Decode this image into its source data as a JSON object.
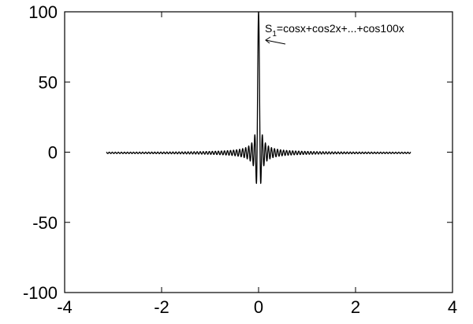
{
  "chart_data": {
    "type": "line",
    "title": "",
    "xlabel": "",
    "ylabel": "",
    "xlim": [
      -4,
      4
    ],
    "ylim": [
      -100,
      100
    ],
    "x_ticks": [
      -4,
      -2,
      0,
      2,
      4
    ],
    "y_ticks": [
      -100,
      -50,
      0,
      50,
      100
    ],
    "grid": false,
    "x_range": [
      -3.14159,
      3.14159
    ],
    "series": [
      {
        "expression": "cos(x)+cos(2x)+...+cos(100x)",
        "n_terms": 100,
        "color": "#000000"
      }
    ],
    "annotations": [
      {
        "text_main": "S",
        "text_sub": "1",
        "text_rest": "=cosx+cos2x+...+cos100x",
        "arrow": true
      }
    ]
  }
}
